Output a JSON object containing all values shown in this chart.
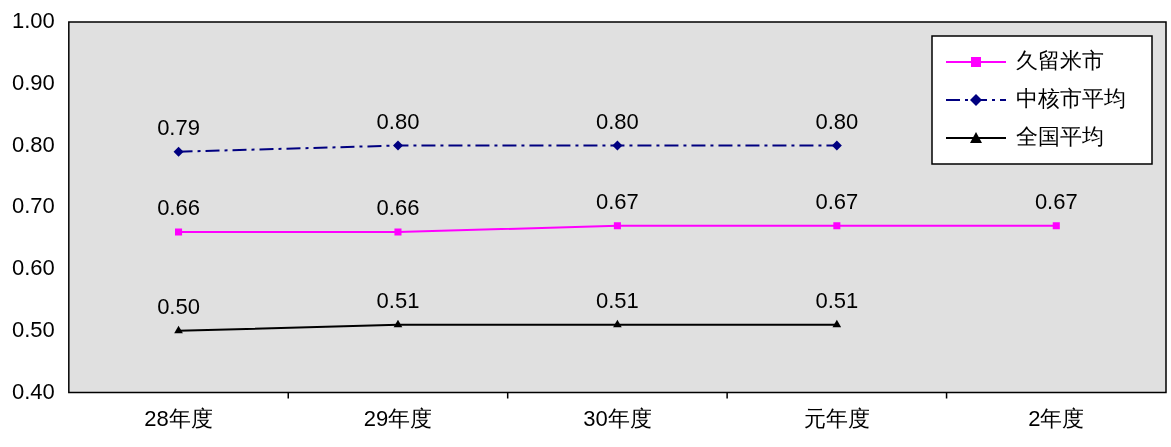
{
  "chart_data": {
    "type": "line",
    "categories": [
      "28年度",
      "29年度",
      "30年度",
      "元年度",
      "2年度"
    ],
    "series": [
      {
        "name": "久留米市",
        "color": "#ff00ff",
        "marker": "square",
        "line_style": "solid",
        "values": [
          0.66,
          0.66,
          0.67,
          0.67,
          0.67
        ],
        "value_labels": [
          "0.66",
          "0.66",
          "0.67",
          "0.67",
          "0.67"
        ]
      },
      {
        "name": "中核市平均",
        "color": "#000080",
        "marker": "diamond",
        "line_style": "dashed",
        "values": [
          0.79,
          0.8,
          0.8,
          0.8,
          null
        ],
        "value_labels": [
          "0.79",
          "0.80",
          "0.80",
          "0.80",
          null
        ]
      },
      {
        "name": "全国平均",
        "color": "#000000",
        "marker": "triangle",
        "line_style": "solid",
        "values": [
          0.5,
          0.51,
          0.51,
          0.51,
          null
        ],
        "value_labels": [
          "0.50",
          "0.51",
          "0.51",
          "0.51",
          null
        ]
      }
    ],
    "ylim": [
      0.4,
      1.0
    ],
    "yticks": [
      {
        "value": 0.4,
        "label": "0.40"
      },
      {
        "value": 0.5,
        "label": "0.50"
      },
      {
        "value": 0.6,
        "label": "0.60"
      },
      {
        "value": 0.7,
        "label": "0.70"
      },
      {
        "value": 0.8,
        "label": "0.80"
      },
      {
        "value": 0.9,
        "label": "0.90"
      },
      {
        "value": 1.0,
        "label": "1.00"
      }
    ],
    "grid": false,
    "legend": "top right"
  }
}
